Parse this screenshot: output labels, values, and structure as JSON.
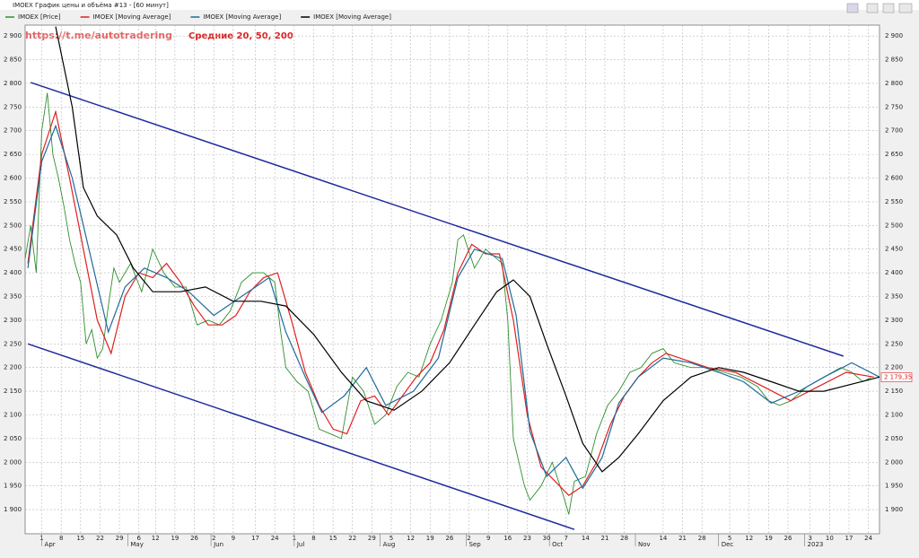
{
  "window": {
    "title": "IMOEX График цены и объёма #13 - [60 минут]"
  },
  "chart_data": {
    "type": "line",
    "annotations": [
      "https://t.me/autotradering",
      "Средние 20, 50, 200"
    ],
    "xlim": [
      -6,
      302
    ],
    "ylim": [
      1849,
      2923
    ],
    "grid": true,
    "xticks": [
      {
        "value": 0,
        "label": "1"
      },
      {
        "value": 7,
        "label": "8"
      },
      {
        "value": 14,
        "label": "15"
      },
      {
        "value": 21,
        "label": "22"
      },
      {
        "value": 28,
        "label": "29"
      },
      {
        "value": 35,
        "label": "6"
      },
      {
        "value": 41,
        "label": "12"
      },
      {
        "value": 48,
        "label": "19"
      },
      {
        "value": 55,
        "label": "26"
      },
      {
        "value": 62,
        "label": "2"
      },
      {
        "value": 69,
        "label": "9"
      },
      {
        "value": 77,
        "label": "17"
      },
      {
        "value": 84,
        "label": "24"
      },
      {
        "value": 91,
        "label": "1"
      },
      {
        "value": 98,
        "label": "8"
      },
      {
        "value": 105,
        "label": "15"
      },
      {
        "value": 112,
        "label": "22"
      },
      {
        "value": 119,
        "label": "29"
      },
      {
        "value": 126,
        "label": "5"
      },
      {
        "value": 133,
        "label": "12"
      },
      {
        "value": 140,
        "label": "19"
      },
      {
        "value": 147,
        "label": "26"
      },
      {
        "value": 154,
        "label": "2"
      },
      {
        "value": 161,
        "label": "9"
      },
      {
        "value": 168,
        "label": "16"
      },
      {
        "value": 175,
        "label": "23"
      },
      {
        "value": 182,
        "label": "30"
      },
      {
        "value": 189,
        "label": "7"
      },
      {
        "value": 196,
        "label": "14"
      },
      {
        "value": 203,
        "label": "21"
      },
      {
        "value": 210,
        "label": "28"
      },
      {
        "value": 224,
        "label": "14"
      },
      {
        "value": 231,
        "label": "21"
      },
      {
        "value": 238,
        "label": "28"
      },
      {
        "value": 248,
        "label": "5"
      },
      {
        "value": 255,
        "label": "12"
      },
      {
        "value": 262,
        "label": "19"
      },
      {
        "value": 269,
        "label": "26"
      },
      {
        "value": 277,
        "label": "3"
      },
      {
        "value": 284,
        "label": "10"
      },
      {
        "value": 291,
        "label": "17"
      },
      {
        "value": 298,
        "label": "24"
      }
    ],
    "months": [
      {
        "value": 0,
        "label": "Apr"
      },
      {
        "value": 31,
        "label": "May"
      },
      {
        "value": 61,
        "label": "Jun"
      },
      {
        "value": 91,
        "label": "Jul"
      },
      {
        "value": 122,
        "label": "Aug"
      },
      {
        "value": 153,
        "label": "Sep"
      },
      {
        "value": 183,
        "label": "Oct"
      },
      {
        "value": 214,
        "label": "Nov"
      },
      {
        "value": 244,
        "label": "Dec"
      },
      {
        "value": 275,
        "label": "2023"
      }
    ],
    "yticks": [
      {
        "value": 1900,
        "label": "1 900"
      },
      {
        "value": 1950,
        "label": "1 950"
      },
      {
        "value": 2000,
        "label": "2 000"
      },
      {
        "value": 2050,
        "label": "2 050"
      },
      {
        "value": 2100,
        "label": "2 100"
      },
      {
        "value": 2150,
        "label": "2 150"
      },
      {
        "value": 2200,
        "label": "2 200"
      },
      {
        "value": 2250,
        "label": "2 250"
      },
      {
        "value": 2300,
        "label": "2 300"
      },
      {
        "value": 2350,
        "label": "2 350"
      },
      {
        "value": 2400,
        "label": "2 400"
      },
      {
        "value": 2450,
        "label": "2 450"
      },
      {
        "value": 2500,
        "label": "2 500"
      },
      {
        "value": 2550,
        "label": "2 550"
      },
      {
        "value": 2600,
        "label": "2 600"
      },
      {
        "value": 2650,
        "label": "2 650"
      },
      {
        "value": 2700,
        "label": "2 700"
      },
      {
        "value": 2750,
        "label": "2 750"
      },
      {
        "value": 2800,
        "label": "2 800"
      },
      {
        "value": 2850,
        "label": "2 850"
      },
      {
        "value": 2900,
        "label": "2 900"
      }
    ],
    "series": [
      {
        "name": "IMOEX [Price]",
        "color": "#2f8f2f",
        "x": [
          -6,
          -4,
          -2,
          0,
          2,
          4,
          6,
          8,
          10,
          12,
          14,
          16,
          18,
          20,
          22,
          24,
          26,
          28,
          32,
          36,
          40,
          44,
          48,
          52,
          56,
          60,
          64,
          68,
          72,
          76,
          80,
          84,
          86,
          88,
          92,
          96,
          100,
          104,
          108,
          112,
          116,
          120,
          124,
          128,
          132,
          136,
          140,
          144,
          148,
          150,
          152,
          156,
          160,
          164,
          166,
          168,
          170,
          172,
          174,
          176,
          180,
          184,
          188,
          190,
          192,
          196,
          200,
          204,
          208,
          212,
          216,
          220,
          224,
          228,
          234,
          240,
          246,
          252,
          258,
          262,
          266,
          270,
          276,
          282,
          288,
          292,
          296,
          299
        ],
        "values": [
          2430,
          2500,
          2400,
          2700,
          2780,
          2650,
          2600,
          2540,
          2470,
          2420,
          2380,
          2250,
          2280,
          2220,
          2240,
          2330,
          2410,
          2380,
          2420,
          2360,
          2450,
          2400,
          2370,
          2370,
          2290,
          2300,
          2290,
          2320,
          2380,
          2400,
          2400,
          2380,
          2280,
          2200,
          2170,
          2150,
          2070,
          2060,
          2050,
          2180,
          2150,
          2080,
          2100,
          2160,
          2190,
          2180,
          2250,
          2300,
          2380,
          2470,
          2480,
          2410,
          2450,
          2430,
          2420,
          2300,
          2050,
          2000,
          1950,
          1920,
          1950,
          2000,
          1930,
          1890,
          1960,
          1970,
          2060,
          2120,
          2150,
          2190,
          2200,
          2230,
          2240,
          2210,
          2200,
          2200,
          2190,
          2180,
          2160,
          2130,
          2120,
          2130,
          2160,
          2180,
          2200,
          2190,
          2170,
          2179.35
        ]
      },
      {
        "name": "IMOEX [Moving Average]",
        "color": "#e02020",
        "x": [
          -5,
          0,
          5,
          10,
          15,
          20,
          25,
          30,
          35,
          40,
          45,
          50,
          55,
          60,
          65,
          70,
          75,
          80,
          85,
          90,
          95,
          100,
          105,
          110,
          115,
          120,
          125,
          130,
          135,
          140,
          145,
          150,
          155,
          160,
          165,
          170,
          175,
          180,
          185,
          190,
          195,
          200,
          205,
          210,
          215,
          220,
          225,
          230,
          240,
          250,
          260,
          270,
          280,
          290,
          300
        ],
        "values": [
          2420,
          2650,
          2740,
          2600,
          2450,
          2300,
          2230,
          2350,
          2400,
          2390,
          2420,
          2380,
          2330,
          2290,
          2290,
          2310,
          2360,
          2390,
          2400,
          2300,
          2190,
          2120,
          2070,
          2060,
          2130,
          2140,
          2100,
          2140,
          2180,
          2210,
          2280,
          2400,
          2460,
          2440,
          2440,
          2300,
          2100,
          1990,
          1960,
          1930,
          1950,
          2000,
          2080,
          2140,
          2180,
          2210,
          2230,
          2220,
          2200,
          2190,
          2160,
          2130,
          2160,
          2190,
          2180
        ]
      },
      {
        "name": "IMOEX [Moving Average]",
        "color": "#1f6a9a",
        "x": [
          -5,
          0,
          5,
          11,
          17,
          24,
          30,
          37,
          45,
          53,
          62,
          72,
          82,
          88,
          95,
          101,
          109,
          117,
          124,
          134,
          143,
          150,
          156,
          166,
          171,
          176,
          182,
          189,
          195,
          202,
          208,
          215,
          224,
          234,
          244,
          253,
          263,
          273,
          282,
          292,
          302
        ],
        "values": [
          2410,
          2635,
          2710,
          2600,
          2450,
          2275,
          2370,
          2410,
          2390,
          2360,
          2310,
          2350,
          2390,
          2275,
          2180,
          2105,
          2140,
          2200,
          2120,
          2150,
          2220,
          2390,
          2450,
          2430,
          2310,
          2065,
          1970,
          2010,
          1945,
          2010,
          2125,
          2180,
          2220,
          2210,
          2190,
          2170,
          2125,
          2150,
          2180,
          2210,
          2180
        ]
      },
      {
        "name": "IMOEX [Moving Average]",
        "color": "#000000",
        "x": [
          5,
          11,
          15,
          20,
          27,
          33,
          40,
          50,
          59,
          69,
          79,
          88,
          98,
          108,
          117,
          127,
          137,
          147,
          156,
          164,
          170,
          176,
          182,
          189,
          195,
          202,
          208,
          215,
          224,
          234,
          244,
          253,
          263,
          273,
          282,
          292,
          302
        ],
        "values": [
          2920,
          2750,
          2580,
          2520,
          2480,
          2410,
          2360,
          2360,
          2370,
          2340,
          2340,
          2330,
          2270,
          2190,
          2130,
          2110,
          2150,
          2210,
          2290,
          2360,
          2385,
          2350,
          2250,
          2140,
          2040,
          1980,
          2010,
          2060,
          2130,
          2180,
          2200,
          2190,
          2170,
          2150,
          2150,
          2165,
          2180
        ]
      }
    ],
    "trend_lines": [
      {
        "color": "#1f2a9e",
        "x": [
          -4,
          289
        ],
        "values": [
          2802,
          2224
        ]
      },
      {
        "color": "#1f2a9e",
        "x": [
          -5,
          192
        ],
        "values": [
          2250,
          1858
        ]
      }
    ],
    "last_price": {
      "value": 2179.35,
      "label": "2 179,35",
      "color": "#e02020"
    }
  }
}
